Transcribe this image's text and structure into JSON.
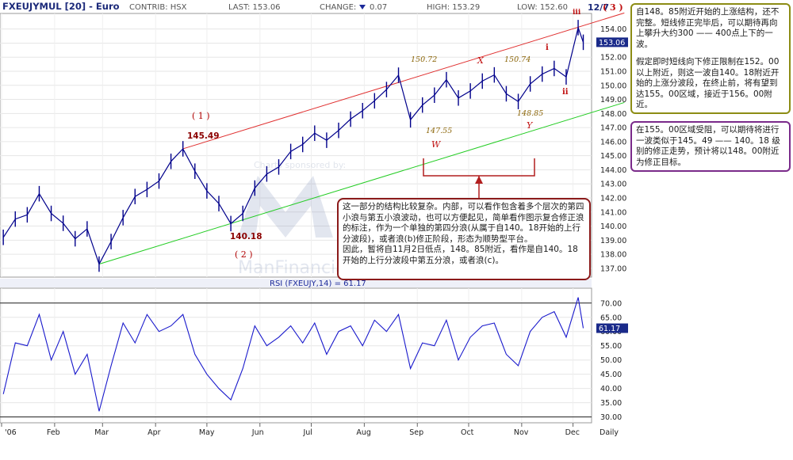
{
  "header": {
    "symbol": "FXEUJYMUL [20] - Euro",
    "contrib": "CONTRIB: HSX",
    "last": "LAST: 153.06",
    "change_label": "CHANGE:",
    "change_value": "0.07",
    "high": "HIGH: 153.29",
    "low": "LOW: 152.60",
    "date": "12/7",
    "wave_label": "( 3 )"
  },
  "watermark": {
    "line1": "Charts sponsored by:",
    "line2": "ManFinancial"
  },
  "chart_data": [
    {
      "type": "line",
      "name": "price",
      "x_tick_labels": [
        "'06",
        "Feb",
        "Mar",
        "Apr",
        "May",
        "Jun",
        "Jul",
        "Aug",
        "Sep",
        "Oct",
        "Nov",
        "Dec",
        "Daily"
      ],
      "y_tick_labels": [
        "137.00",
        "138.00",
        "139.00",
        "140.00",
        "141.00",
        "142.00",
        "143.00",
        "144.00",
        "145.00",
        "146.00",
        "147.00",
        "148.00",
        "149.00",
        "150.00",
        "151.00",
        "152.00",
        "153.00",
        "154.00"
      ],
      "ylim": [
        136.6,
        154.6
      ],
      "last_value": "153.06",
      "series": [
        {
          "color": "#00008b",
          "x": [
            "2006-01-02",
            "2006-01-09",
            "2006-01-16",
            "2006-01-23",
            "2006-01-30",
            "2006-02-06",
            "2006-02-13",
            "2006-02-20",
            "2006-02-27",
            "2006-03-06",
            "2006-03-13",
            "2006-03-20",
            "2006-03-27",
            "2006-04-03",
            "2006-04-10",
            "2006-04-17",
            "2006-04-24",
            "2006-05-01",
            "2006-05-08",
            "2006-05-15",
            "2006-05-22",
            "2006-05-29",
            "2006-06-05",
            "2006-06-12",
            "2006-06-19",
            "2006-06-26",
            "2006-07-03",
            "2006-07-10",
            "2006-07-17",
            "2006-07-24",
            "2006-07-31",
            "2006-08-07",
            "2006-08-14",
            "2006-08-21",
            "2006-08-28",
            "2006-09-04",
            "2006-09-11",
            "2006-09-18",
            "2006-09-25",
            "2006-10-02",
            "2006-10-09",
            "2006-10-16",
            "2006-10-23",
            "2006-10-30",
            "2006-11-06",
            "2006-11-13",
            "2006-11-20",
            "2006-11-27",
            "2006-12-04",
            "2006-12-07"
          ],
          "values": [
            139.2,
            140.5,
            140.8,
            142.3,
            140.9,
            140.2,
            139.1,
            139.8,
            137.3,
            138.9,
            140.6,
            142.1,
            142.6,
            143.2,
            144.6,
            145.49,
            143.9,
            142.5,
            141.6,
            140.18,
            140.9,
            142.7,
            143.7,
            144.2,
            145.3,
            145.8,
            146.6,
            146.1,
            146.8,
            147.6,
            148.2,
            148.9,
            149.7,
            150.72,
            147.55,
            148.6,
            149.3,
            150.4,
            149.1,
            149.6,
            150.3,
            150.74,
            149.4,
            148.85,
            150.1,
            150.8,
            151.2,
            150.6,
            154.1,
            153.06
          ]
        }
      ],
      "annotations": {
        "wave1": "( 1 )",
        "wave1_price": "145.49",
        "wave2": "( 2 )",
        "wave2_price": "140.18",
        "w": "W",
        "w_price": "147.55",
        "x": "X",
        "x_price_left": "150.72",
        "x_price_right": "150.74",
        "y": "Y",
        "y_price": "148.85",
        "i": "i",
        "ii": "ii",
        "iii": "iii",
        "trend_upper_color": "#e03030",
        "trend_lower_color": "#22cc22"
      }
    },
    {
      "type": "line",
      "name": "rsi",
      "title": "RSI (FXEUJY,14) = 61.17",
      "y_tick_labels": [
        "30.00",
        "35.00",
        "40.00",
        "45.00",
        "50.00",
        "55.00",
        "60.00",
        "65.00",
        "70.00"
      ],
      "ylim": [
        28.5,
        73
      ],
      "reference_lines": [
        30,
        70
      ],
      "last_value": "61.17",
      "series": [
        {
          "color": "#1a1acc",
          "x": [
            "2006-01-02",
            "2006-01-09",
            "2006-01-16",
            "2006-01-23",
            "2006-01-30",
            "2006-02-06",
            "2006-02-13",
            "2006-02-20",
            "2006-02-27",
            "2006-03-06",
            "2006-03-13",
            "2006-03-20",
            "2006-03-27",
            "2006-04-03",
            "2006-04-10",
            "2006-04-17",
            "2006-04-24",
            "2006-05-01",
            "2006-05-08",
            "2006-05-15",
            "2006-05-22",
            "2006-05-29",
            "2006-06-05",
            "2006-06-12",
            "2006-06-19",
            "2006-06-26",
            "2006-07-03",
            "2006-07-10",
            "2006-07-17",
            "2006-07-24",
            "2006-07-31",
            "2006-08-07",
            "2006-08-14",
            "2006-08-21",
            "2006-08-28",
            "2006-09-04",
            "2006-09-11",
            "2006-09-18",
            "2006-09-25",
            "2006-10-02",
            "2006-10-09",
            "2006-10-16",
            "2006-10-23",
            "2006-10-30",
            "2006-11-06",
            "2006-11-13",
            "2006-11-20",
            "2006-11-27",
            "2006-12-04",
            "2006-12-07"
          ],
          "values": [
            38,
            56,
            55,
            66,
            50,
            60,
            45,
            52,
            32,
            48,
            63,
            56,
            66,
            60,
            62,
            66,
            52,
            45,
            40,
            36,
            47,
            62,
            55,
            58,
            62,
            56,
            63,
            52,
            60,
            62,
            55,
            64,
            60,
            66,
            47,
            56,
            55,
            64,
            50,
            58,
            62,
            63,
            52,
            48,
            60,
            65,
            67,
            58,
            72,
            61.17
          ]
        }
      ]
    }
  ],
  "notes": {
    "note1_p1": "自148。85附近开始的上涨结构，还不完整。短线修正完毕后，可以期待再向上攀升大约300 —— 400点上下的一波。",
    "note1_p2": "假定即时短线向下修正限制在152。00以上附近，则这一波自140。18附近开始的上涨分波段，在终止前，将有望到达155。00区域，接近于156。00附近。",
    "note2": "在155。00区域受阻，可以期待将进行一波类似于145。49 —— 140。18 级别的修正走势，预计将以148。00附近为修正目标。",
    "note3_p1": "这一部分的结构比较复杂。内部，可以看作包含着多个层次的第四小浪与第五小浪波动，也可以方便起见，简单看作图示复合修正浪的标注，作为一个单独的第四分浪(从属于自140。18开始的上行分波段)，或者浪(b)修正阶段，形态为顺势型平台。",
    "note3_p2": "因此，暂将自11月2日低点，148。85附近，看作是自140。18开始的上行分波段中第五分浪，或者浪(c)。"
  }
}
